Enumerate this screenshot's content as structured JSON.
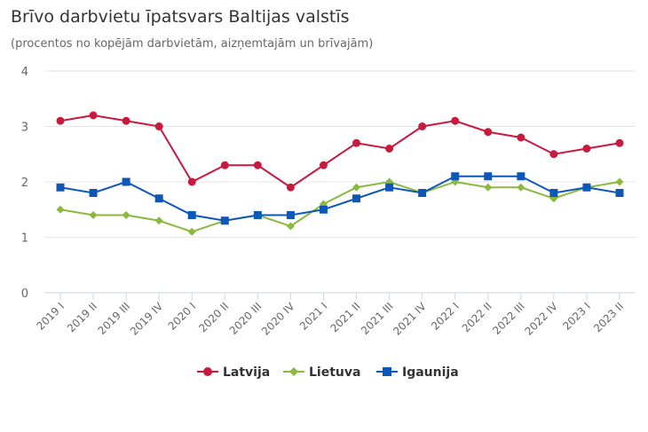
{
  "chart_data": {
    "type": "line",
    "title": "Brīvo darbvietu īpatsvars Baltijas valstīs",
    "subtitle": "(procentos no kopējām darbvietām, aizņemtajām un brīvajām)",
    "xlabel": "",
    "ylabel": "",
    "ylim": [
      0,
      4
    ],
    "yticks": [
      "0",
      "1",
      "2",
      "3",
      "4"
    ],
    "grid": true,
    "legend_position": "bottom",
    "categories": [
      "2019 I",
      "2019 II",
      "2019 III",
      "2019 IV",
      "2020 I",
      "2020 II",
      "2020 III",
      "2020 IV",
      "2021 I",
      "2021 II",
      "2021 III",
      "2021 IV",
      "2022 I",
      "2022 II",
      "2022 III",
      "2022 IV",
      "2023 I",
      "2023 II"
    ],
    "series": [
      {
        "name": "Latvija",
        "color": "#c8193f",
        "marker": "circle",
        "values": [
          3.1,
          3.2,
          3.1,
          3.0,
          2.0,
          2.3,
          2.3,
          1.9,
          2.3,
          2.7,
          2.6,
          3.0,
          3.1,
          2.9,
          2.8,
          2.5,
          2.6,
          2.7
        ]
      },
      {
        "name": "Lietuva",
        "color": "#8bb83e",
        "marker": "diamond",
        "values": [
          1.5,
          1.4,
          1.4,
          1.3,
          1.1,
          1.3,
          1.4,
          1.2,
          1.6,
          1.9,
          2.0,
          1.8,
          2.0,
          1.9,
          1.9,
          1.7,
          1.9,
          2.0
        ]
      },
      {
        "name": "Igaunija",
        "color": "#0d57b8",
        "marker": "square",
        "values": [
          1.9,
          1.8,
          2.0,
          1.7,
          1.4,
          1.3,
          1.4,
          1.4,
          1.5,
          1.7,
          1.9,
          1.8,
          2.1,
          2.1,
          2.1,
          1.8,
          1.9,
          1.8
        ]
      }
    ]
  }
}
